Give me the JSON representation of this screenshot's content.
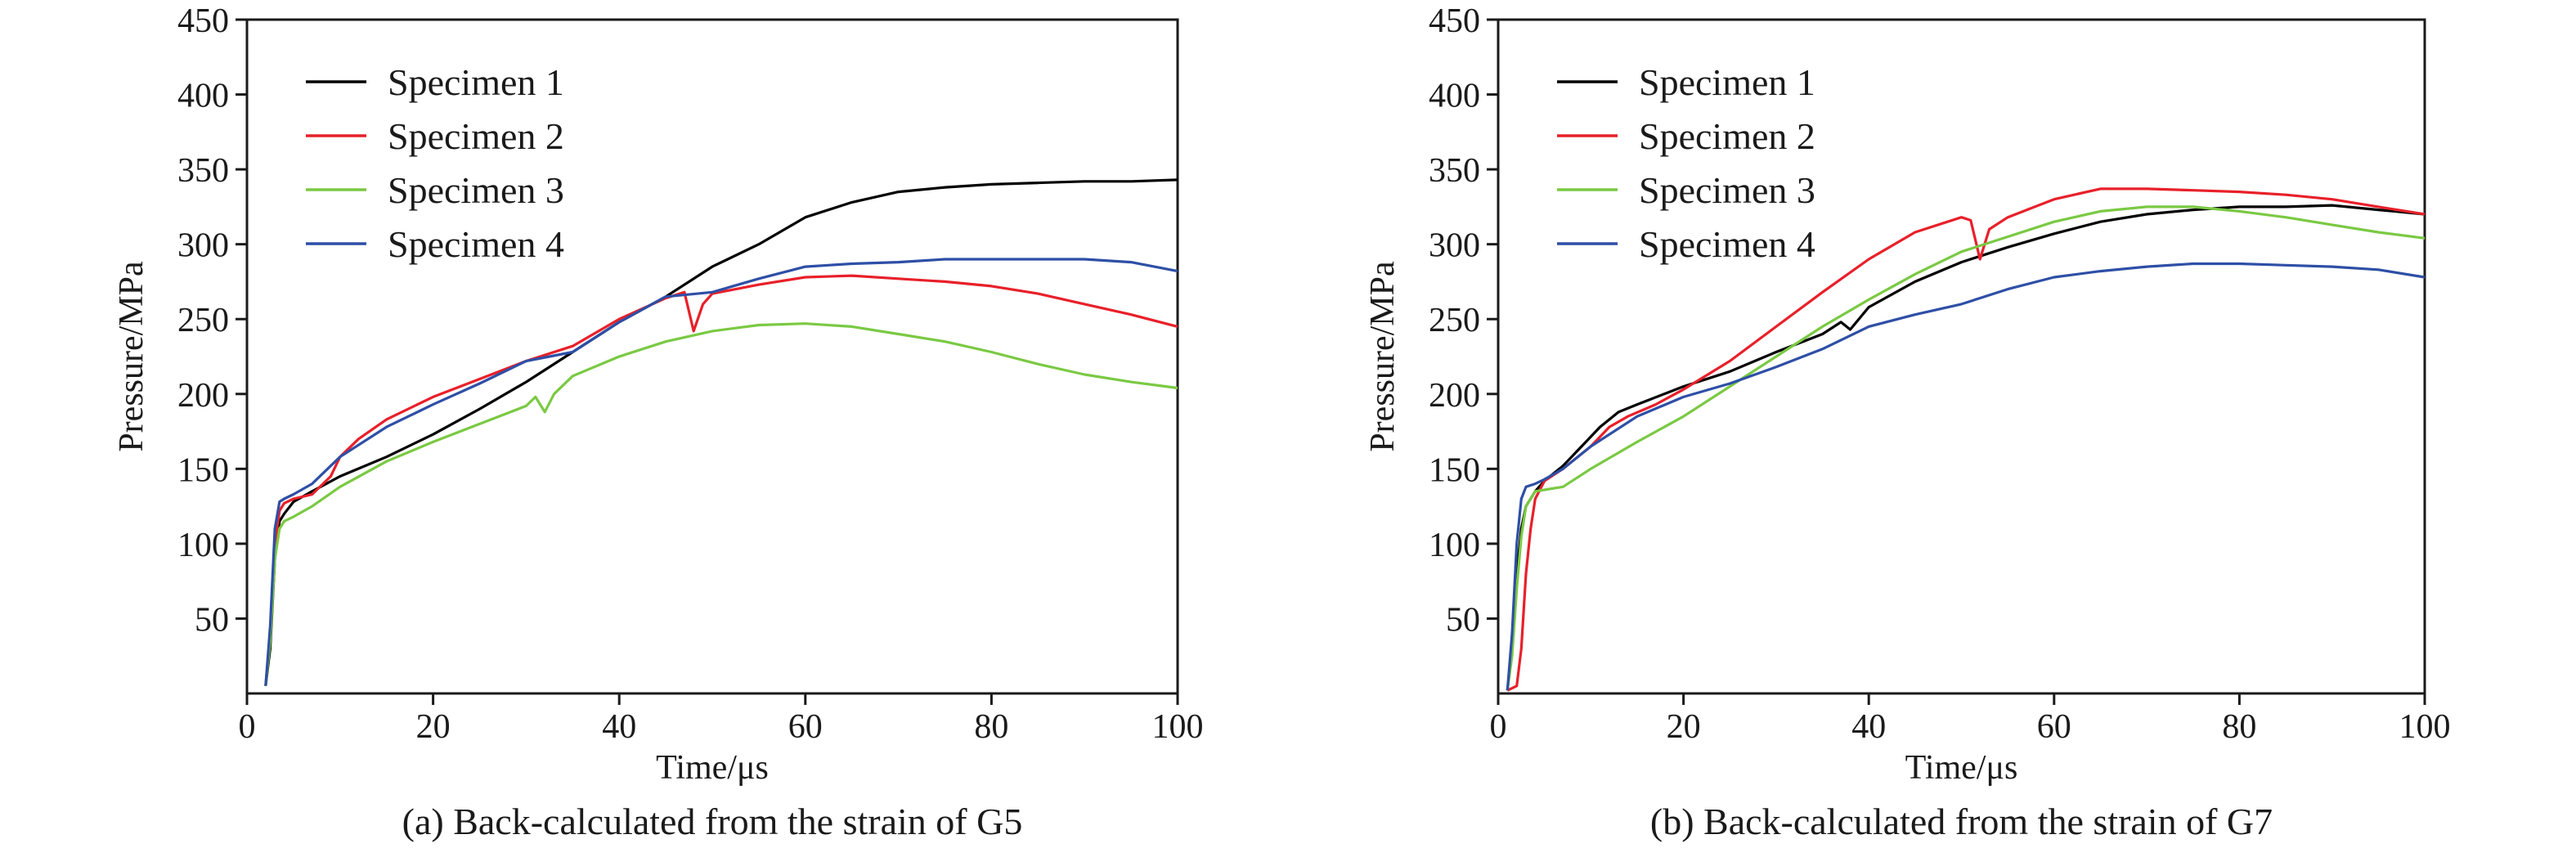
{
  "chart_data": [
    {
      "type": "line",
      "caption": "(a) Back-calculated from the strain of G5",
      "xlabel": "Time/μs",
      "ylabel": "Pressure/MPa",
      "xlim": [
        0,
        100
      ],
      "ylim": [
        0,
        450
      ],
      "xticks": [
        0,
        20,
        40,
        60,
        80,
        100
      ],
      "yticks": [
        50,
        100,
        150,
        200,
        250,
        300,
        350,
        400,
        450
      ],
      "legend": "top-left",
      "grid": false,
      "series": [
        {
          "name": "Specimen 1",
          "color": "#000000",
          "x": [
            2,
            2.5,
            3,
            3.5,
            4,
            5,
            7,
            10,
            15,
            20,
            25,
            30,
            35,
            40,
            45,
            50,
            55,
            60,
            65,
            70,
            75,
            80,
            85,
            90,
            95,
            100
          ],
          "y": [
            5,
            30,
            90,
            115,
            120,
            128,
            135,
            145,
            158,
            173,
            190,
            208,
            228,
            248,
            265,
            285,
            300,
            318,
            328,
            335,
            338,
            340,
            341,
            342,
            342,
            343
          ]
        },
        {
          "name": "Specimen 2",
          "color": "#e8202a",
          "x": [
            2,
            2.5,
            3,
            3.5,
            4,
            5,
            7,
            9,
            10,
            12,
            15,
            20,
            25,
            30,
            35,
            40,
            45,
            47,
            48,
            49,
            50,
            55,
            60,
            65,
            70,
            75,
            80,
            85,
            90,
            95,
            100
          ],
          "y": [
            5,
            40,
            100,
            122,
            127,
            130,
            133,
            145,
            158,
            170,
            183,
            198,
            210,
            222,
            232,
            250,
            264,
            268,
            242,
            260,
            267,
            273,
            278,
            279,
            277,
            275,
            272,
            267,
            260,
            253,
            245
          ]
        },
        {
          "name": "Specimen 3",
          "color": "#7ac943",
          "x": [
            2,
            2.5,
            3,
            3.5,
            4,
            5,
            7,
            10,
            15,
            20,
            25,
            30,
            31,
            32,
            33,
            35,
            40,
            45,
            50,
            55,
            60,
            65,
            70,
            75,
            80,
            85,
            90,
            95,
            100
          ],
          "y": [
            5,
            35,
            90,
            110,
            115,
            118,
            125,
            138,
            155,
            168,
            180,
            192,
            198,
            188,
            200,
            212,
            225,
            235,
            242,
            246,
            247,
            245,
            240,
            235,
            228,
            220,
            213,
            208,
            204
          ]
        },
        {
          "name": "Specimen 4",
          "color": "#2e4fa6",
          "x": [
            2,
            2.5,
            3,
            3.5,
            4,
            5,
            7,
            10,
            15,
            20,
            25,
            30,
            35,
            40,
            45,
            50,
            55,
            60,
            65,
            70,
            75,
            80,
            85,
            90,
            95,
            100
          ],
          "y": [
            5,
            45,
            110,
            128,
            130,
            133,
            140,
            158,
            178,
            193,
            207,
            222,
            228,
            248,
            265,
            268,
            277,
            285,
            287,
            288,
            290,
            290,
            290,
            290,
            288,
            282
          ]
        }
      ]
    },
    {
      "type": "line",
      "caption": "(b) Back-calculated from the strain of G7",
      "xlabel": "Time/μs",
      "ylabel": "Pressure/MPa",
      "xlim": [
        0,
        100
      ],
      "ylim": [
        0,
        450
      ],
      "xticks": [
        0,
        20,
        40,
        60,
        80,
        100
      ],
      "yticks": [
        50,
        100,
        150,
        200,
        250,
        300,
        350,
        400,
        450
      ],
      "legend": "top-left",
      "grid": false,
      "series": [
        {
          "name": "Specimen 1",
          "color": "#000000",
          "x": [
            1,
            1.5,
            2,
            2.5,
            3,
            4,
            5,
            7,
            9,
            11,
            13,
            15,
            20,
            25,
            30,
            35,
            37,
            38,
            40,
            45,
            50,
            55,
            60,
            65,
            70,
            75,
            80,
            85,
            90,
            95,
            100
          ],
          "y": [
            2,
            30,
            80,
            110,
            125,
            135,
            142,
            152,
            165,
            178,
            188,
            193,
            205,
            215,
            228,
            240,
            248,
            243,
            258,
            275,
            288,
            298,
            307,
            315,
            320,
            323,
            325,
            325,
            326,
            323,
            320
          ]
        },
        {
          "name": "Specimen 2",
          "color": "#e8202a",
          "x": [
            1,
            2,
            2.5,
            3,
            3.5,
            4,
            5,
            7,
            10,
            12,
            14,
            17,
            20,
            25,
            30,
            35,
            40,
            45,
            50,
            51,
            52,
            53,
            55,
            60,
            65,
            70,
            75,
            80,
            85,
            90,
            95,
            100
          ],
          "y": [
            2,
            5,
            30,
            80,
            110,
            130,
            142,
            150,
            165,
            178,
            185,
            193,
            203,
            222,
            245,
            268,
            290,
            308,
            318,
            316,
            290,
            310,
            318,
            330,
            337,
            337,
            336,
            335,
            333,
            330,
            325,
            320
          ]
        },
        {
          "name": "Specimen 3",
          "color": "#7ac943",
          "x": [
            1,
            1.5,
            2,
            2.5,
            3,
            4,
            5,
            7,
            10,
            15,
            20,
            25,
            30,
            35,
            40,
            45,
            50,
            55,
            60,
            65,
            70,
            75,
            80,
            85,
            90,
            95,
            100
          ],
          "y": [
            2,
            25,
            70,
            105,
            125,
            135,
            136,
            138,
            150,
            168,
            185,
            205,
            225,
            245,
            263,
            280,
            295,
            305,
            315,
            322,
            325,
            325,
            322,
            318,
            313,
            308,
            304
          ]
        },
        {
          "name": "Specimen 4",
          "color": "#2e4fa6",
          "x": [
            1,
            1.5,
            2,
            2.5,
            3,
            4,
            5,
            7,
            10,
            15,
            20,
            25,
            30,
            35,
            40,
            45,
            50,
            55,
            60,
            65,
            70,
            75,
            80,
            85,
            90,
            95,
            100
          ],
          "y": [
            2,
            40,
            100,
            130,
            138,
            140,
            143,
            150,
            165,
            185,
            198,
            207,
            218,
            230,
            245,
            253,
            260,
            270,
            278,
            282,
            285,
            287,
            287,
            286,
            285,
            283,
            278
          ]
        }
      ]
    }
  ]
}
